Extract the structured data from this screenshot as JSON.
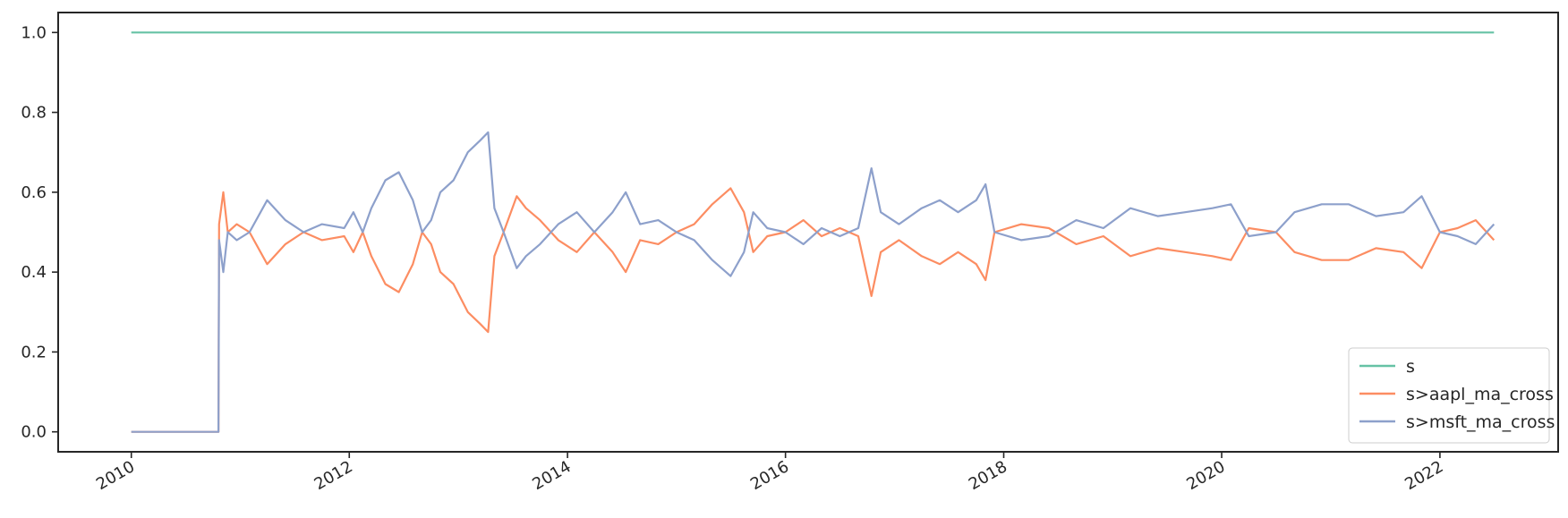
{
  "chart_data": {
    "type": "line",
    "title": "",
    "xlabel": "",
    "ylabel": "",
    "x_axis": "date",
    "xlim": [
      "2009-05-01",
      "2023-02-01"
    ],
    "ylim": [
      -0.05,
      1.05
    ],
    "x_ticks": [
      "2010-01-01",
      "2012-01-01",
      "2014-01-01",
      "2016-01-01",
      "2018-01-01",
      "2020-01-01",
      "2022-01-01"
    ],
    "x_tick_labels": [
      "2010",
      "2012",
      "2014",
      "2016",
      "2018",
      "2020",
      "2022"
    ],
    "y_ticks": [
      0.0,
      0.2,
      0.4,
      0.6,
      0.8,
      1.0
    ],
    "y_tick_labels": [
      "0.0",
      "0.2",
      "0.4",
      "0.6",
      "0.8",
      "1.0"
    ],
    "grid": false,
    "legend_position": "lower-right",
    "series": [
      {
        "name": "s",
        "color": "#66c2a5",
        "points": [
          [
            "2010-01-01",
            1.0
          ],
          [
            "2022-07-01",
            1.0
          ]
        ]
      },
      {
        "name": "s>aapl_ma_cross",
        "color": "#fc8d62",
        "points": [
          [
            "2010-01-01",
            0.0
          ],
          [
            "2010-10-20",
            0.0
          ],
          [
            "2010-10-22",
            0.52
          ],
          [
            "2010-11-05",
            0.6
          ],
          [
            "2010-11-20",
            0.5
          ],
          [
            "2010-12-20",
            0.52
          ],
          [
            "2011-02-01",
            0.5
          ],
          [
            "2011-04-01",
            0.42
          ],
          [
            "2011-06-01",
            0.47
          ],
          [
            "2011-08-01",
            0.5
          ],
          [
            "2011-10-01",
            0.48
          ],
          [
            "2011-12-15",
            0.49
          ],
          [
            "2012-01-15",
            0.45
          ],
          [
            "2012-02-15",
            0.5
          ],
          [
            "2012-03-15",
            0.44
          ],
          [
            "2012-05-01",
            0.37
          ],
          [
            "2012-06-15",
            0.35
          ],
          [
            "2012-08-01",
            0.42
          ],
          [
            "2012-09-01",
            0.5
          ],
          [
            "2012-10-01",
            0.47
          ],
          [
            "2012-11-01",
            0.4
          ],
          [
            "2012-12-15",
            0.37
          ],
          [
            "2013-02-01",
            0.3
          ],
          [
            "2013-03-15",
            0.27
          ],
          [
            "2013-04-10",
            0.25
          ],
          [
            "2013-05-01",
            0.44
          ],
          [
            "2013-06-01",
            0.5
          ],
          [
            "2013-07-15",
            0.59
          ],
          [
            "2013-08-15",
            0.56
          ],
          [
            "2013-10-01",
            0.53
          ],
          [
            "2013-12-01",
            0.48
          ],
          [
            "2014-02-01",
            0.45
          ],
          [
            "2014-04-01",
            0.5
          ],
          [
            "2014-06-01",
            0.45
          ],
          [
            "2014-07-15",
            0.4
          ],
          [
            "2014-09-01",
            0.48
          ],
          [
            "2014-11-01",
            0.47
          ],
          [
            "2015-01-01",
            0.5
          ],
          [
            "2015-03-01",
            0.52
          ],
          [
            "2015-05-01",
            0.57
          ],
          [
            "2015-07-01",
            0.61
          ],
          [
            "2015-08-15",
            0.55
          ],
          [
            "2015-09-15",
            0.45
          ],
          [
            "2015-11-01",
            0.49
          ],
          [
            "2016-01-01",
            0.5
          ],
          [
            "2016-03-01",
            0.53
          ],
          [
            "2016-05-01",
            0.49
          ],
          [
            "2016-07-01",
            0.51
          ],
          [
            "2016-09-01",
            0.49
          ],
          [
            "2016-10-15",
            0.34
          ],
          [
            "2016-11-15",
            0.45
          ],
          [
            "2017-01-15",
            0.48
          ],
          [
            "2017-04-01",
            0.44
          ],
          [
            "2017-06-01",
            0.42
          ],
          [
            "2017-08-01",
            0.45
          ],
          [
            "2017-10-01",
            0.42
          ],
          [
            "2017-11-01",
            0.38
          ],
          [
            "2017-12-01",
            0.5
          ],
          [
            "2018-03-01",
            0.52
          ],
          [
            "2018-06-01",
            0.51
          ],
          [
            "2018-09-01",
            0.47
          ],
          [
            "2018-12-01",
            0.49
          ],
          [
            "2019-03-01",
            0.44
          ],
          [
            "2019-06-01",
            0.46
          ],
          [
            "2019-09-01",
            0.45
          ],
          [
            "2019-12-01",
            0.44
          ],
          [
            "2020-02-01",
            0.43
          ],
          [
            "2020-04-01",
            0.51
          ],
          [
            "2020-07-01",
            0.5
          ],
          [
            "2020-09-01",
            0.45
          ],
          [
            "2020-12-01",
            0.43
          ],
          [
            "2021-03-01",
            0.43
          ],
          [
            "2021-06-01",
            0.46
          ],
          [
            "2021-09-01",
            0.45
          ],
          [
            "2021-11-01",
            0.41
          ],
          [
            "2022-01-01",
            0.5
          ],
          [
            "2022-03-01",
            0.51
          ],
          [
            "2022-05-01",
            0.53
          ],
          [
            "2022-07-01",
            0.48
          ]
        ]
      },
      {
        "name": "s>msft_ma_cross",
        "color": "#8da0cb",
        "points": [
          [
            "2010-01-01",
            0.0
          ],
          [
            "2010-10-20",
            0.0
          ],
          [
            "2010-10-22",
            0.48
          ],
          [
            "2010-11-05",
            0.4
          ],
          [
            "2010-11-20",
            0.5
          ],
          [
            "2010-12-20",
            0.48
          ],
          [
            "2011-02-01",
            0.5
          ],
          [
            "2011-04-01",
            0.58
          ],
          [
            "2011-06-01",
            0.53
          ],
          [
            "2011-08-01",
            0.5
          ],
          [
            "2011-10-01",
            0.52
          ],
          [
            "2011-12-15",
            0.51
          ],
          [
            "2012-01-15",
            0.55
          ],
          [
            "2012-02-15",
            0.5
          ],
          [
            "2012-03-15",
            0.56
          ],
          [
            "2012-05-01",
            0.63
          ],
          [
            "2012-06-15",
            0.65
          ],
          [
            "2012-08-01",
            0.58
          ],
          [
            "2012-09-01",
            0.5
          ],
          [
            "2012-10-01",
            0.53
          ],
          [
            "2012-11-01",
            0.6
          ],
          [
            "2012-12-15",
            0.63
          ],
          [
            "2013-02-01",
            0.7
          ],
          [
            "2013-03-15",
            0.73
          ],
          [
            "2013-04-10",
            0.75
          ],
          [
            "2013-05-01",
            0.56
          ],
          [
            "2013-06-01",
            0.5
          ],
          [
            "2013-07-15",
            0.41
          ],
          [
            "2013-08-15",
            0.44
          ],
          [
            "2013-10-01",
            0.47
          ],
          [
            "2013-12-01",
            0.52
          ],
          [
            "2014-02-01",
            0.55
          ],
          [
            "2014-04-01",
            0.5
          ],
          [
            "2014-06-01",
            0.55
          ],
          [
            "2014-07-15",
            0.6
          ],
          [
            "2014-09-01",
            0.52
          ],
          [
            "2014-11-01",
            0.53
          ],
          [
            "2015-01-01",
            0.5
          ],
          [
            "2015-03-01",
            0.48
          ],
          [
            "2015-05-01",
            0.43
          ],
          [
            "2015-07-01",
            0.39
          ],
          [
            "2015-08-15",
            0.45
          ],
          [
            "2015-09-15",
            0.55
          ],
          [
            "2015-11-01",
            0.51
          ],
          [
            "2016-01-01",
            0.5
          ],
          [
            "2016-03-01",
            0.47
          ],
          [
            "2016-05-01",
            0.51
          ],
          [
            "2016-07-01",
            0.49
          ],
          [
            "2016-09-01",
            0.51
          ],
          [
            "2016-10-15",
            0.66
          ],
          [
            "2016-11-15",
            0.55
          ],
          [
            "2017-01-15",
            0.52
          ],
          [
            "2017-04-01",
            0.56
          ],
          [
            "2017-06-01",
            0.58
          ],
          [
            "2017-08-01",
            0.55
          ],
          [
            "2017-10-01",
            0.58
          ],
          [
            "2017-11-01",
            0.62
          ],
          [
            "2017-12-01",
            0.5
          ],
          [
            "2018-03-01",
            0.48
          ],
          [
            "2018-06-01",
            0.49
          ],
          [
            "2018-09-01",
            0.53
          ],
          [
            "2018-12-01",
            0.51
          ],
          [
            "2019-03-01",
            0.56
          ],
          [
            "2019-06-01",
            0.54
          ],
          [
            "2019-09-01",
            0.55
          ],
          [
            "2019-12-01",
            0.56
          ],
          [
            "2020-02-01",
            0.57
          ],
          [
            "2020-04-01",
            0.49
          ],
          [
            "2020-07-01",
            0.5
          ],
          [
            "2020-09-01",
            0.55
          ],
          [
            "2020-12-01",
            0.57
          ],
          [
            "2021-03-01",
            0.57
          ],
          [
            "2021-06-01",
            0.54
          ],
          [
            "2021-09-01",
            0.55
          ],
          [
            "2021-11-01",
            0.59
          ],
          [
            "2022-01-01",
            0.5
          ],
          [
            "2022-03-01",
            0.49
          ],
          [
            "2022-05-01",
            0.47
          ],
          [
            "2022-07-01",
            0.52
          ]
        ]
      }
    ]
  }
}
